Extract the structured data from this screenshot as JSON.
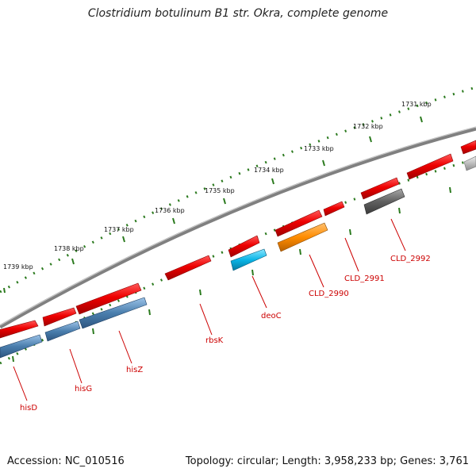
{
  "title": "Clostridium botulinum B1 str. Okra, complete genome",
  "footer": {
    "accession": "Accession: NC_010516",
    "summary": "Topology: circular; Length: 3,958,233 bp; Genes: 3,761"
  },
  "scale_labels": [
    "1739 kbp",
    "1738 kbp",
    "1737 kbp",
    "1736 kbp",
    "1735 kbp",
    "1734 kbp",
    "1733 kbp",
    "1732 kbp",
    "1731 kbp"
  ],
  "gene_labels": [
    "hisD",
    "hisG",
    "hisZ",
    "rbsK",
    "deoC",
    "CLD_2990",
    "CLD_2991",
    "CLD_2992"
  ],
  "colors": {
    "forward_gene": "#ee0000",
    "his_gene": "#4a7ead",
    "deoC": "#0ab4e6",
    "CLD_2990": "#ff8c00",
    "CLD_2992": "#606060",
    "unknown_gene": "#bdbdbd",
    "backbone": "#808080",
    "tick": "#2b7a1e",
    "label_line": "#cc0000"
  }
}
